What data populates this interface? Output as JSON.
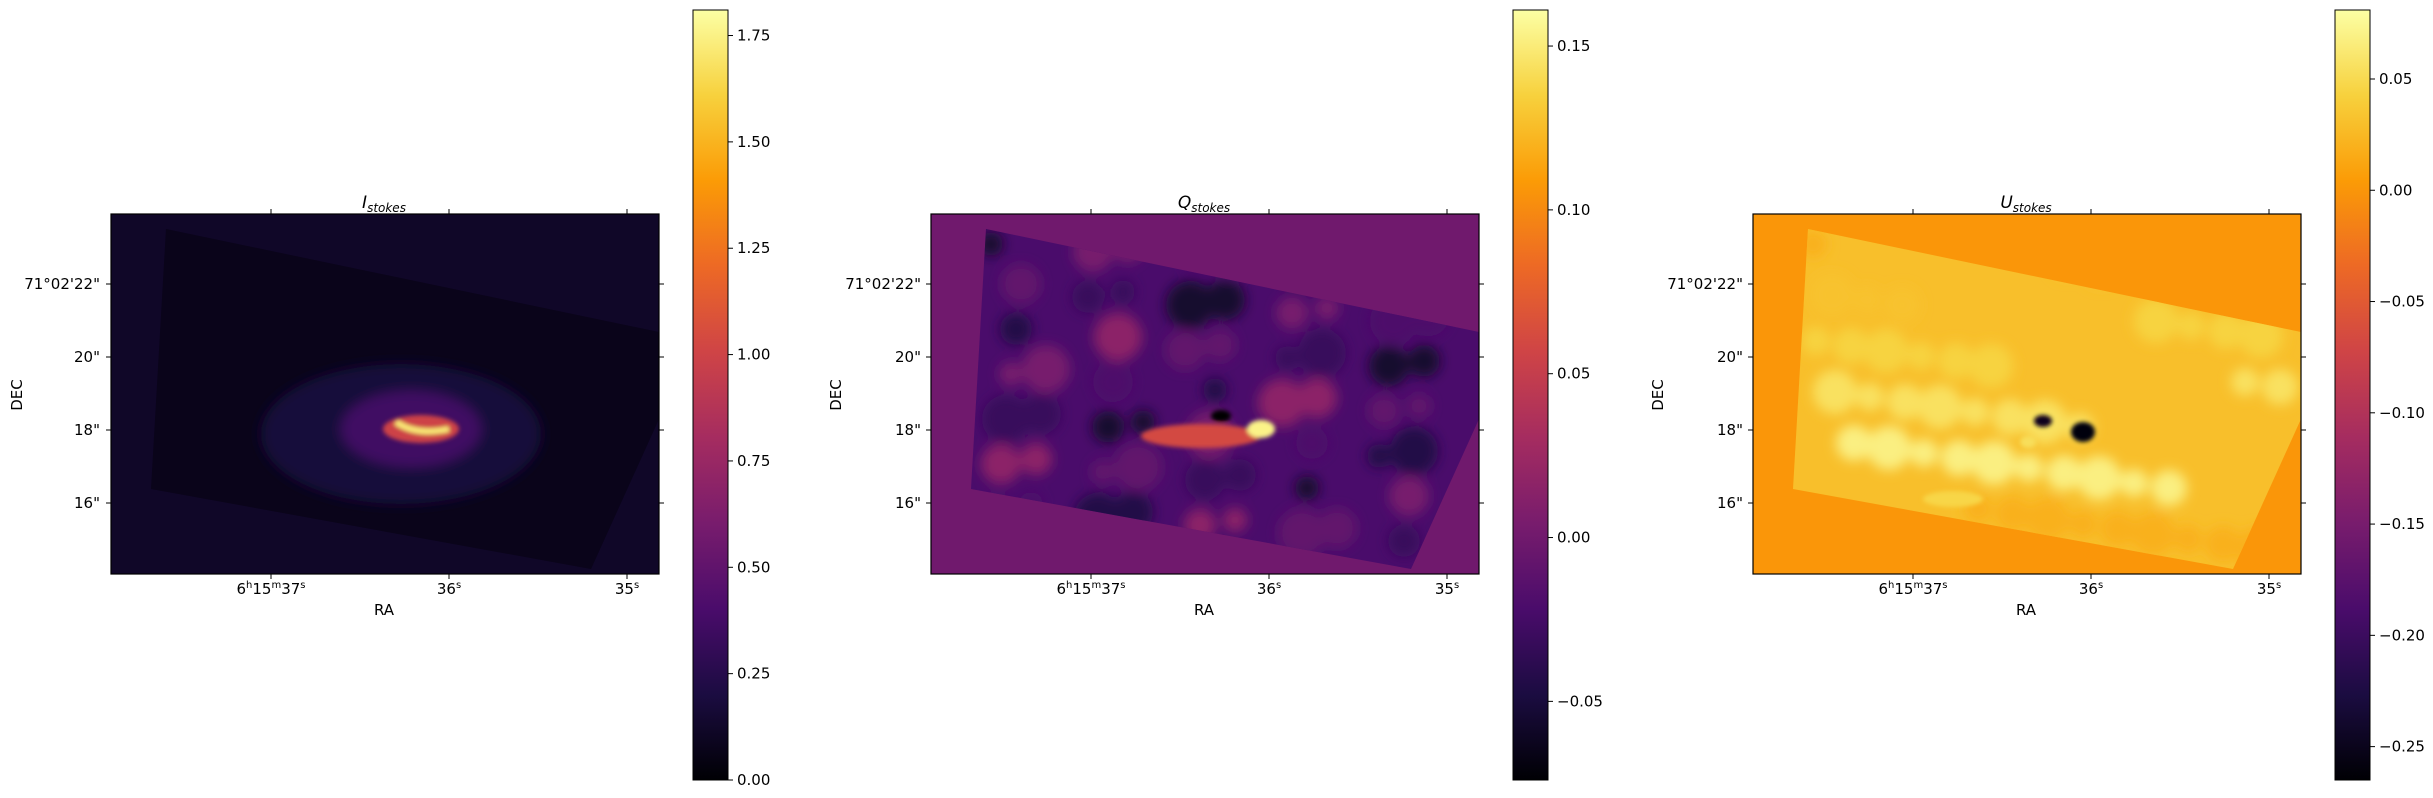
{
  "colormap": [
    "#000004",
    "#1b0c41",
    "#4a0c6b",
    "#781c6d",
    "#a52c60",
    "#cf4446",
    "#ed6925",
    "#fb9b06",
    "#f7d13d",
    "#fcffa4"
  ],
  "chart_data": [
    {
      "type": "heatmap",
      "title_main": "I",
      "title_sub": "stokes",
      "xlabel": "RA",
      "ylabel": "DEC",
      "xticks": [
        {
          "main": "6",
          "sup1": "h",
          "mid": "15",
          "sup2": "m",
          "end": "37",
          "sup3": "s"
        },
        {
          "main": "36",
          "sup3": "s"
        },
        {
          "main": "35",
          "sup3": "s"
        }
      ],
      "yticks": [
        "71°02'22\"",
        "20\"",
        "18\"",
        "16\""
      ],
      "colorbar_ticks": [
        "0.00",
        "0.25",
        "0.50",
        "0.75",
        "1.00",
        "1.25",
        "1.50",
        "1.75"
      ],
      "colorbar_values": [
        0.0,
        0.25,
        0.5,
        0.75,
        1.0,
        1.25,
        1.5,
        1.75
      ],
      "vmin": 0.0,
      "vmax": 1.81,
      "field_value": 0.12,
      "feature": "bright-ridge"
    },
    {
      "type": "heatmap",
      "title_main": "Q",
      "title_sub": "stokes",
      "xlabel": "RA",
      "ylabel": "DEC",
      "xticks": [
        {
          "main": "6",
          "sup1": "h",
          "mid": "15",
          "sup2": "m",
          "end": "37",
          "sup3": "s"
        },
        {
          "main": "36",
          "sup3": "s"
        },
        {
          "main": "35",
          "sup3": "s"
        }
      ],
      "yticks": [
        "71°02'22\"",
        "20\"",
        "18\"",
        "16\""
      ],
      "colorbar_ticks": [
        "0.15",
        "0.10",
        "0.05",
        "0.00",
        "−0.05"
      ],
      "colorbar_values": [
        0.15,
        0.1,
        0.05,
        0.0,
        -0.05
      ],
      "vmin": -0.074,
      "vmax": 0.161,
      "field_value": 0.0,
      "feature": "dipole"
    },
    {
      "type": "heatmap",
      "title_main": "U",
      "title_sub": "stokes",
      "xlabel": "RA",
      "ylabel": "DEC",
      "xticks": [
        {
          "main": "6",
          "sup1": "h",
          "mid": "15",
          "sup2": "m",
          "end": "37",
          "sup3": "s"
        },
        {
          "main": "36",
          "sup3": "s"
        },
        {
          "main": "35",
          "sup3": "s"
        }
      ],
      "yticks": [
        "71°02'22\"",
        "20\"",
        "18\"",
        "16\""
      ],
      "colorbar_ticks": [
        "0.05",
        "0.00",
        "−0.05",
        "−0.10",
        "−0.15",
        "−0.20",
        "−0.25"
      ],
      "colorbar_values": [
        0.05,
        0.0,
        -0.05,
        -0.1,
        -0.15,
        -0.2,
        -0.25
      ],
      "vmin": -0.265,
      "vmax": 0.081,
      "field_value": 0.0,
      "feature": "dark-knots"
    }
  ]
}
